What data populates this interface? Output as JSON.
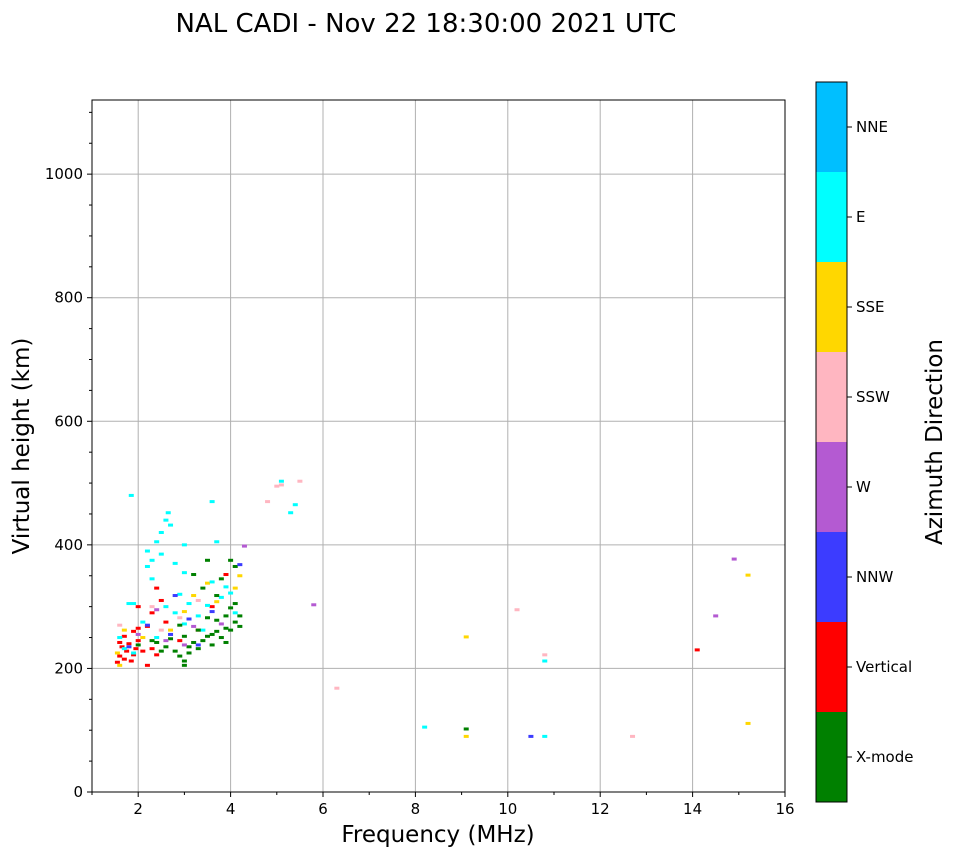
{
  "chart_data": {
    "type": "scatter",
    "title": "NAL CADI - Nov 22 18:30:00 2021 UTC",
    "xlabel": "Frequency (MHz)",
    "ylabel": "Virtual height (km)",
    "xlim": [
      1,
      16
    ],
    "ylim": [
      0,
      1120
    ],
    "xticks": [
      2,
      4,
      6,
      8,
      10,
      12,
      14,
      16
    ],
    "yticks": [
      0,
      200,
      400,
      600,
      800,
      1000
    ],
    "grid": true,
    "colorbar": {
      "label": "Azimuth Direction",
      "categories": [
        {
          "name": "X-mode",
          "color": "#008000"
        },
        {
          "name": "Vertical",
          "color": "#ff0000"
        },
        {
          "name": "NNW",
          "color": "#3c3cff"
        },
        {
          "name": "W",
          "color": "#b45ad2"
        },
        {
          "name": "SSW",
          "color": "#ffb6c1"
        },
        {
          "name": "SSE",
          "color": "#ffd700"
        },
        {
          "name": "E",
          "color": "#00ffff"
        },
        {
          "name": "NNE",
          "color": "#00bfff"
        }
      ]
    },
    "points": [
      {
        "x": 1.55,
        "y": 210,
        "c": "Vertical"
      },
      {
        "x": 1.6,
        "y": 220,
        "c": "Vertical"
      },
      {
        "x": 1.65,
        "y": 235,
        "c": "Vertical"
      },
      {
        "x": 1.7,
        "y": 215,
        "c": "Vertical"
      },
      {
        "x": 1.75,
        "y": 228,
        "c": "Vertical"
      },
      {
        "x": 1.8,
        "y": 240,
        "c": "Vertical"
      },
      {
        "x": 1.85,
        "y": 212,
        "c": "Vertical"
      },
      {
        "x": 1.9,
        "y": 222,
        "c": "Vertical"
      },
      {
        "x": 1.95,
        "y": 232,
        "c": "Vertical"
      },
      {
        "x": 2.0,
        "y": 245,
        "c": "Vertical"
      },
      {
        "x": 2.1,
        "y": 228,
        "c": "Vertical"
      },
      {
        "x": 2.2,
        "y": 205,
        "c": "Vertical"
      },
      {
        "x": 2.3,
        "y": 232,
        "c": "Vertical"
      },
      {
        "x": 2.4,
        "y": 222,
        "c": "Vertical"
      },
      {
        "x": 1.7,
        "y": 252,
        "c": "Vertical"
      },
      {
        "x": 1.6,
        "y": 242,
        "c": "Vertical"
      },
      {
        "x": 1.9,
        "y": 260,
        "c": "Vertical"
      },
      {
        "x": 2.0,
        "y": 265,
        "c": "Vertical"
      },
      {
        "x": 2.2,
        "y": 268,
        "c": "Vertical"
      },
      {
        "x": 2.3,
        "y": 290,
        "c": "Vertical"
      },
      {
        "x": 2.4,
        "y": 330,
        "c": "Vertical"
      },
      {
        "x": 2.0,
        "y": 300,
        "c": "Vertical"
      },
      {
        "x": 2.6,
        "y": 275,
        "c": "Vertical"
      },
      {
        "x": 2.9,
        "y": 245,
        "c": "Vertical"
      },
      {
        "x": 3.3,
        "y": 262,
        "c": "Vertical"
      },
      {
        "x": 3.6,
        "y": 300,
        "c": "Vertical"
      },
      {
        "x": 3.9,
        "y": 352,
        "c": "Vertical"
      },
      {
        "x": 2.5,
        "y": 310,
        "c": "Vertical"
      },
      {
        "x": 1.55,
        "y": 225,
        "c": "SSE"
      },
      {
        "x": 1.6,
        "y": 205,
        "c": "SSE"
      },
      {
        "x": 1.7,
        "y": 262,
        "c": "SSE"
      },
      {
        "x": 2.1,
        "y": 250,
        "c": "SSE"
      },
      {
        "x": 3.2,
        "y": 318,
        "c": "SSE"
      },
      {
        "x": 3.5,
        "y": 338,
        "c": "SSE"
      },
      {
        "x": 3.7,
        "y": 308,
        "c": "SSE"
      },
      {
        "x": 4.1,
        "y": 330,
        "c": "SSE"
      },
      {
        "x": 4.2,
        "y": 350,
        "c": "SSE"
      },
      {
        "x": 3.0,
        "y": 292,
        "c": "SSE"
      },
      {
        "x": 2.7,
        "y": 262,
        "c": "SSE"
      },
      {
        "x": 1.6,
        "y": 250,
        "c": "E"
      },
      {
        "x": 1.7,
        "y": 232,
        "c": "E"
      },
      {
        "x": 1.8,
        "y": 305,
        "c": "E"
      },
      {
        "x": 1.9,
        "y": 305,
        "c": "E"
      },
      {
        "x": 1.85,
        "y": 480,
        "c": "E"
      },
      {
        "x": 2.2,
        "y": 390,
        "c": "E"
      },
      {
        "x": 2.3,
        "y": 375,
        "c": "E"
      },
      {
        "x": 2.4,
        "y": 405,
        "c": "E"
      },
      {
        "x": 2.5,
        "y": 420,
        "c": "E"
      },
      {
        "x": 2.6,
        "y": 440,
        "c": "E"
      },
      {
        "x": 2.7,
        "y": 432,
        "c": "E"
      },
      {
        "x": 2.65,
        "y": 452,
        "c": "E"
      },
      {
        "x": 2.3,
        "y": 345,
        "c": "E"
      },
      {
        "x": 2.2,
        "y": 365,
        "c": "E"
      },
      {
        "x": 2.5,
        "y": 385,
        "c": "E"
      },
      {
        "x": 2.6,
        "y": 300,
        "c": "E"
      },
      {
        "x": 2.8,
        "y": 290,
        "c": "E"
      },
      {
        "x": 2.9,
        "y": 320,
        "c": "E"
      },
      {
        "x": 3.0,
        "y": 355,
        "c": "E"
      },
      {
        "x": 3.1,
        "y": 305,
        "c": "E"
      },
      {
        "x": 3.3,
        "y": 285,
        "c": "E"
      },
      {
        "x": 3.5,
        "y": 302,
        "c": "E"
      },
      {
        "x": 3.6,
        "y": 340,
        "c": "E"
      },
      {
        "x": 3.8,
        "y": 315,
        "c": "E"
      },
      {
        "x": 3.9,
        "y": 332,
        "c": "E"
      },
      {
        "x": 4.0,
        "y": 322,
        "c": "E"
      },
      {
        "x": 4.1,
        "y": 290,
        "c": "E"
      },
      {
        "x": 3.7,
        "y": 405,
        "c": "E"
      },
      {
        "x": 3.6,
        "y": 470,
        "c": "E"
      },
      {
        "x": 3.0,
        "y": 400,
        "c": "E"
      },
      {
        "x": 3.0,
        "y": 272,
        "c": "E"
      },
      {
        "x": 3.4,
        "y": 262,
        "c": "E"
      },
      {
        "x": 2.4,
        "y": 250,
        "c": "E"
      },
      {
        "x": 2.1,
        "y": 275,
        "c": "E"
      },
      {
        "x": 1.9,
        "y": 225,
        "c": "E"
      },
      {
        "x": 2.8,
        "y": 370,
        "c": "E"
      },
      {
        "x": 5.1,
        "y": 503,
        "c": "E"
      },
      {
        "x": 5.4,
        "y": 465,
        "c": "E"
      },
      {
        "x": 5.3,
        "y": 452,
        "c": "E"
      },
      {
        "x": 8.2,
        "y": 105,
        "c": "E"
      },
      {
        "x": 10.8,
        "y": 212,
        "c": "E"
      },
      {
        "x": 10.8,
        "y": 90,
        "c": "E"
      },
      {
        "x": 2.0,
        "y": 238,
        "c": "X-mode"
      },
      {
        "x": 2.4,
        "y": 242,
        "c": "X-mode"
      },
      {
        "x": 2.6,
        "y": 235,
        "c": "X-mode"
      },
      {
        "x": 2.8,
        "y": 228,
        "c": "X-mode"
      },
      {
        "x": 2.9,
        "y": 220,
        "c": "X-mode"
      },
      {
        "x": 3.0,
        "y": 212,
        "c": "X-mode"
      },
      {
        "x": 3.1,
        "y": 235,
        "c": "X-mode"
      },
      {
        "x": 3.2,
        "y": 242,
        "c": "X-mode"
      },
      {
        "x": 3.3,
        "y": 232,
        "c": "X-mode"
      },
      {
        "x": 3.4,
        "y": 245,
        "c": "X-mode"
      },
      {
        "x": 3.5,
        "y": 252,
        "c": "X-mode"
      },
      {
        "x": 3.6,
        "y": 255,
        "c": "X-mode"
      },
      {
        "x": 3.7,
        "y": 260,
        "c": "X-mode"
      },
      {
        "x": 3.8,
        "y": 250,
        "c": "X-mode"
      },
      {
        "x": 3.9,
        "y": 265,
        "c": "X-mode"
      },
      {
        "x": 4.0,
        "y": 262,
        "c": "X-mode"
      },
      {
        "x": 4.1,
        "y": 275,
        "c": "X-mode"
      },
      {
        "x": 4.2,
        "y": 268,
        "c": "X-mode"
      },
      {
        "x": 3.9,
        "y": 285,
        "c": "X-mode"
      },
      {
        "x": 4.0,
        "y": 298,
        "c": "X-mode"
      },
      {
        "x": 4.1,
        "y": 305,
        "c": "X-mode"
      },
      {
        "x": 3.7,
        "y": 278,
        "c": "X-mode"
      },
      {
        "x": 3.3,
        "y": 262,
        "c": "X-mode"
      },
      {
        "x": 3.0,
        "y": 252,
        "c": "X-mode"
      },
      {
        "x": 2.7,
        "y": 248,
        "c": "X-mode"
      },
      {
        "x": 2.9,
        "y": 270,
        "c": "X-mode"
      },
      {
        "x": 3.5,
        "y": 282,
        "c": "X-mode"
      },
      {
        "x": 3.4,
        "y": 330,
        "c": "X-mode"
      },
      {
        "x": 3.8,
        "y": 345,
        "c": "X-mode"
      },
      {
        "x": 4.0,
        "y": 375,
        "c": "X-mode"
      },
      {
        "x": 4.1,
        "y": 365,
        "c": "X-mode"
      },
      {
        "x": 3.7,
        "y": 318,
        "c": "X-mode"
      },
      {
        "x": 3.2,
        "y": 352,
        "c": "X-mode"
      },
      {
        "x": 3.5,
        "y": 375,
        "c": "X-mode"
      },
      {
        "x": 3.1,
        "y": 225,
        "c": "X-mode"
      },
      {
        "x": 3.0,
        "y": 205,
        "c": "X-mode"
      },
      {
        "x": 2.5,
        "y": 228,
        "c": "X-mode"
      },
      {
        "x": 2.3,
        "y": 245,
        "c": "X-mode"
      },
      {
        "x": 4.2,
        "y": 285,
        "c": "X-mode"
      },
      {
        "x": 3.6,
        "y": 238,
        "c": "X-mode"
      },
      {
        "x": 3.9,
        "y": 242,
        "c": "X-mode"
      },
      {
        "x": 9.1,
        "y": 102,
        "c": "X-mode"
      },
      {
        "x": 1.8,
        "y": 235,
        "c": "NNW"
      },
      {
        "x": 2.2,
        "y": 270,
        "c": "NNW"
      },
      {
        "x": 2.7,
        "y": 255,
        "c": "NNW"
      },
      {
        "x": 3.1,
        "y": 280,
        "c": "NNW"
      },
      {
        "x": 3.3,
        "y": 238,
        "c": "NNW"
      },
      {
        "x": 3.6,
        "y": 292,
        "c": "NNW"
      },
      {
        "x": 4.2,
        "y": 368,
        "c": "NNW"
      },
      {
        "x": 2.8,
        "y": 318,
        "c": "NNW"
      },
      {
        "x": 10.5,
        "y": 90,
        "c": "NNW"
      },
      {
        "x": 2.0,
        "y": 255,
        "c": "W"
      },
      {
        "x": 2.6,
        "y": 245,
        "c": "W"
      },
      {
        "x": 3.0,
        "y": 238,
        "c": "W"
      },
      {
        "x": 3.2,
        "y": 268,
        "c": "W"
      },
      {
        "x": 3.8,
        "y": 272,
        "c": "W"
      },
      {
        "x": 4.3,
        "y": 398,
        "c": "W"
      },
      {
        "x": 2.4,
        "y": 295,
        "c": "W"
      },
      {
        "x": 5.8,
        "y": 303,
        "c": "W"
      },
      {
        "x": 14.5,
        "y": 285,
        "c": "W"
      },
      {
        "x": 14.9,
        "y": 377,
        "c": "W"
      },
      {
        "x": 1.6,
        "y": 270,
        "c": "SSW"
      },
      {
        "x": 2.3,
        "y": 300,
        "c": "SSW"
      },
      {
        "x": 2.5,
        "y": 262,
        "c": "SSW"
      },
      {
        "x": 2.9,
        "y": 282,
        "c": "SSW"
      },
      {
        "x": 3.3,
        "y": 310,
        "c": "SSW"
      },
      {
        "x": 4.8,
        "y": 470,
        "c": "SSW"
      },
      {
        "x": 5.1,
        "y": 497,
        "c": "SSW"
      },
      {
        "x": 5.5,
        "y": 503,
        "c": "SSW"
      },
      {
        "x": 5.0,
        "y": 495,
        "c": "SSW"
      },
      {
        "x": 6.3,
        "y": 168,
        "c": "SSW"
      },
      {
        "x": 10.2,
        "y": 295,
        "c": "SSW"
      },
      {
        "x": 10.8,
        "y": 222,
        "c": "SSW"
      },
      {
        "x": 12.7,
        "y": 90,
        "c": "SSW"
      },
      {
        "x": 9.1,
        "y": 251,
        "c": "SSE"
      },
      {
        "x": 9.1,
        "y": 90,
        "c": "SSE"
      },
      {
        "x": 15.2,
        "y": 351,
        "c": "SSE"
      },
      {
        "x": 15.2,
        "y": 111,
        "c": "SSE"
      },
      {
        "x": 14.1,
        "y": 230,
        "c": "Vertical"
      }
    ]
  }
}
